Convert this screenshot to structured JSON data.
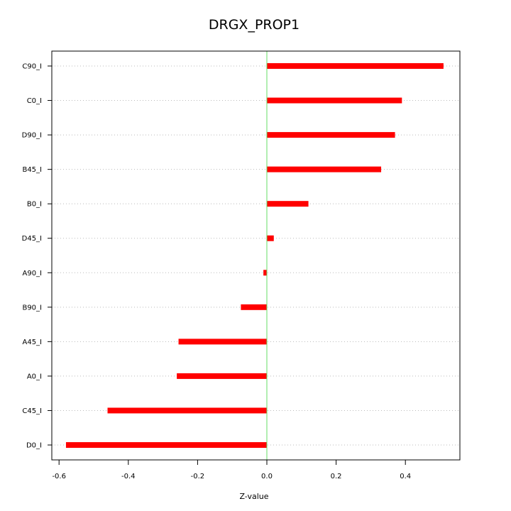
{
  "chart_data": {
    "type": "bar",
    "orientation": "horizontal",
    "title": "DRGX_PROP1",
    "xlabel": "Z-value",
    "ylabel": "",
    "categories": [
      "C90_I",
      "C0_I",
      "D90_I",
      "B45_I",
      "B0_I",
      "D45_I",
      "A90_I",
      "B90_I",
      "A45_I",
      "A0_I",
      "C45_I",
      "D0_I"
    ],
    "values": [
      0.51,
      0.39,
      0.37,
      0.33,
      0.12,
      0.02,
      -0.01,
      -0.075,
      -0.255,
      -0.26,
      -0.46,
      -0.58
    ],
    "xlim": [
      -0.62,
      0.55
    ],
    "xticks": [
      -0.6,
      -0.4,
      -0.2,
      0.0,
      0.2,
      0.4
    ],
    "xtick_labels": [
      "-0.6",
      "-0.4",
      "-0.2",
      "0.0",
      "0.2",
      "0.4"
    ],
    "grid": "horizontal dotted",
    "reference_line": 0.0,
    "colors": {
      "bar": "#ff0000",
      "zero_line": "#66dd66",
      "grid": "#bbbbbb",
      "axis": "#000000"
    }
  }
}
